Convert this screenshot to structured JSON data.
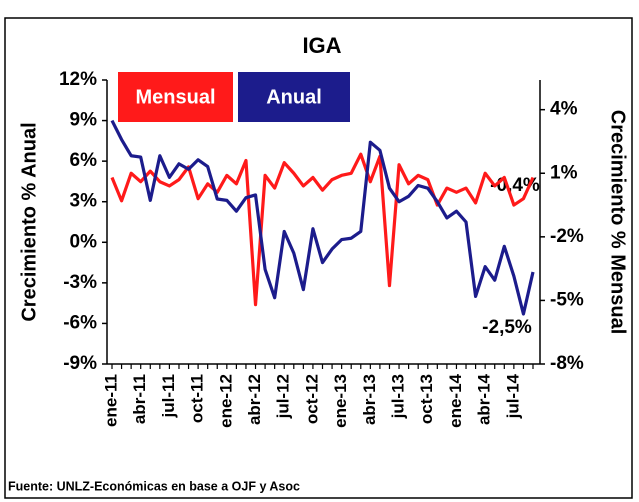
{
  "chart_data": {
    "type": "line",
    "title": "IGA",
    "ylabel": "Crecimiento % Anual",
    "y2label": "Crecimiento % Mensual",
    "source": "Fuente: UNLZ-Económicas en base a OJF y Asoc",
    "annotations": [
      "-0,4%",
      "-2,5%"
    ],
    "categories": [
      "ene-11",
      null,
      null,
      "abr-11",
      null,
      null,
      "jul-11",
      null,
      null,
      "oct-11",
      null,
      null,
      "ene-12",
      null,
      null,
      "abr-12",
      null,
      null,
      "jul-12",
      null,
      null,
      "oct-12",
      null,
      null,
      "ene-13",
      null,
      null,
      "abr-13",
      null,
      null,
      "jul-13",
      null,
      null,
      "oct-13",
      null,
      null,
      "ene-14",
      null,
      null,
      "abr-14",
      null,
      null,
      "jul-14",
      null,
      null
    ],
    "series": [
      {
        "name": "Mensual",
        "color": "#ff1a1a",
        "axis": "y2",
        "values": [
          0.8,
          -0.3,
          1.0,
          0.6,
          1.1,
          0.6,
          0.4,
          0.7,
          1.3,
          -0.2,
          0.5,
          0.1,
          0.9,
          0.5,
          1.6,
          -5.2,
          0.9,
          0.3,
          1.5,
          1.0,
          0.4,
          0.8,
          0.2,
          0.7,
          0.9,
          1.0,
          1.9,
          0.6,
          1.8,
          -4.3,
          1.4,
          0.5,
          0.9,
          0.7,
          -0.5,
          0.3,
          0.1,
          0.3,
          -0.4,
          1.0,
          0.4,
          0.8,
          -0.5,
          -0.2,
          0.8
        ]
      },
      {
        "name": "Anual",
        "color": "#1c1c8c",
        "values": [
          9.0,
          7.6,
          6.4,
          6.3,
          3.1,
          6.4,
          4.8,
          5.8,
          5.4,
          6.1,
          5.6,
          3.2,
          3.1,
          2.3,
          3.3,
          3.5,
          -2.0,
          -4.1,
          0.8,
          -0.8,
          -3.5,
          1.0,
          -1.5,
          -0.5,
          0.2,
          0.3,
          0.8,
          7.4,
          6.8,
          4.0,
          3.0,
          3.4,
          4.2,
          4.0,
          3.0,
          1.8,
          2.3,
          1.5,
          -4.0,
          -1.8,
          -2.8,
          -0.3,
          -2.5,
          -5.3,
          -2.2
        ]
      }
    ],
    "ylim": [
      -9,
      12
    ],
    "yticks": [
      {
        "value": -9,
        "label": "-9%"
      },
      {
        "value": -6,
        "label": "-6%"
      },
      {
        "value": -3,
        "label": "-3%"
      },
      {
        "value": 0,
        "label": "0%"
      },
      {
        "value": 3,
        "label": "3%"
      },
      {
        "value": 6,
        "label": "6%"
      },
      {
        "value": 9,
        "label": "9%"
      },
      {
        "value": 12,
        "label": "12%"
      }
    ],
    "y2lim": [
      -8,
      5.4
    ],
    "y2ticks": [
      {
        "value": -8,
        "label": "-8%"
      },
      {
        "value": -5,
        "label": "-5%"
      },
      {
        "value": -2,
        "label": "-2%"
      },
      {
        "value": 1,
        "label": "1%"
      },
      {
        "value": 4,
        "label": "4%"
      }
    ]
  }
}
